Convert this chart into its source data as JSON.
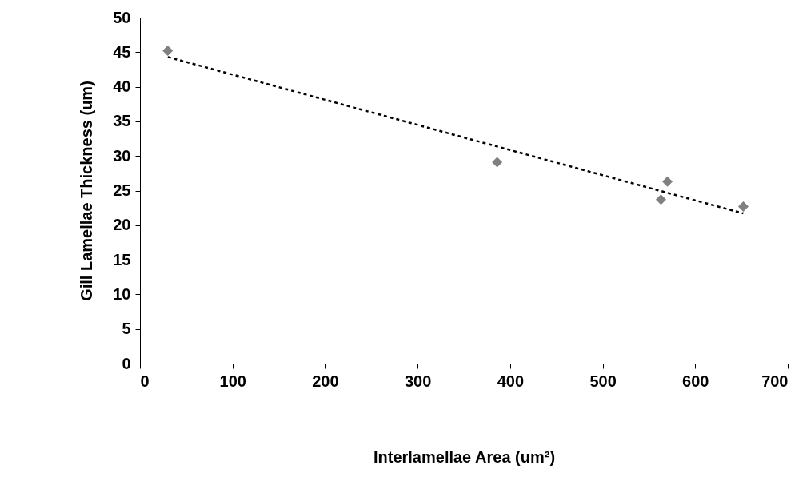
{
  "chart_data": {
    "type": "scatter",
    "xlabel": "Interlamellae Area (um²)",
    "ylabel": "Gill Lamellae Thickness (um)",
    "xlim": [
      0,
      700
    ],
    "xticks": [
      0,
      100,
      200,
      300,
      400,
      500,
      600,
      700
    ],
    "ylim": [
      0,
      50
    ],
    "yticks": [
      0,
      5,
      10,
      15,
      20,
      25,
      30,
      35,
      40,
      45,
      50
    ],
    "grid": false,
    "series": [
      {
        "color": "#808080",
        "marker": "diamond",
        "x": [
          30,
          386,
          563,
          570,
          652
        ],
        "values": [
          45.2,
          29.1,
          23.7,
          26.3,
          22.7
        ]
      },
      {
        "type": "line",
        "color": "#000000",
        "line_style": "dashed",
        "marker": "none",
        "x": [
          30,
          652
        ],
        "values": [
          44.3,
          21.7
        ]
      }
    ]
  }
}
